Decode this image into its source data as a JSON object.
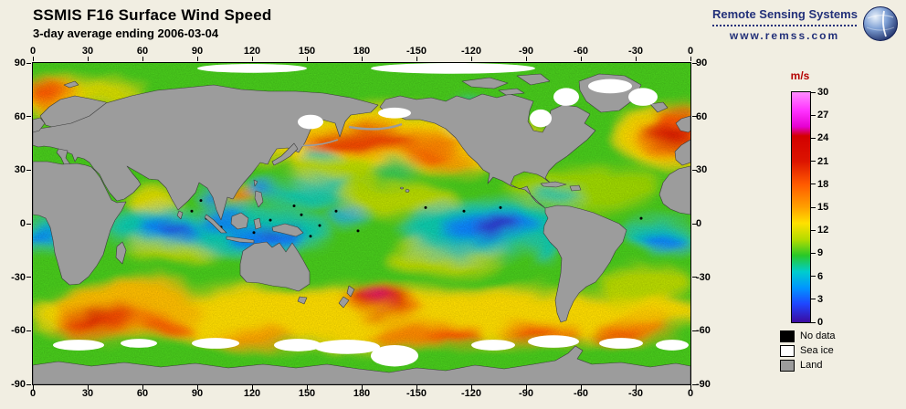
{
  "header": {
    "title": "SSMIS F16 Surface Wind Speed",
    "subtitle": "3-day average ending 2006-03-04"
  },
  "branding": {
    "name": "Remote Sensing Systems",
    "url": "www.remss.com"
  },
  "map": {
    "lon_ticks": [
      "0",
      "30",
      "60",
      "90",
      "120",
      "150",
      "180",
      "-150",
      "-120",
      "-90",
      "-60",
      "-30",
      "0"
    ],
    "lat_ticks": [
      "90",
      "60",
      "30",
      "0",
      "-30",
      "-60",
      "-90"
    ]
  },
  "colorbar": {
    "unit": "m/s",
    "unit_color": "#b40000",
    "min": 0,
    "max": 30,
    "ticks": [
      "30",
      "27",
      "24",
      "21",
      "18",
      "15",
      "12",
      "9",
      "6",
      "3",
      "0"
    ],
    "gradient": [
      {
        "p": 0,
        "c": "#ff8cff"
      },
      {
        "p": 8,
        "c": "#ff32ff"
      },
      {
        "p": 15,
        "c": "#e600d2"
      },
      {
        "p": 19,
        "c": "#d20000"
      },
      {
        "p": 30,
        "c": "#dc1400"
      },
      {
        "p": 40,
        "c": "#ff5a00"
      },
      {
        "p": 50,
        "c": "#ffa000"
      },
      {
        "p": 57,
        "c": "#ffe100"
      },
      {
        "p": 64,
        "c": "#b4dc00"
      },
      {
        "p": 71,
        "c": "#28c828"
      },
      {
        "p": 78,
        "c": "#00cdcd"
      },
      {
        "p": 85,
        "c": "#0096ff"
      },
      {
        "p": 92,
        "c": "#1e46ff"
      },
      {
        "p": 100,
        "c": "#3c0aa0"
      }
    ]
  },
  "legend": [
    {
      "label": "No data",
      "color": "#000000"
    },
    {
      "label": "Sea ice",
      "color": "#ffffff"
    },
    {
      "label": "Land",
      "color": "#9c9c9c"
    }
  ],
  "chart_data": {
    "type": "heatmap",
    "title": "SSMIS F16 Surface Wind Speed",
    "subtitle": "3-day average ending 2006-03-04",
    "variable": "ocean surface wind speed",
    "unit": "m/s",
    "scale_range": [
      0,
      30
    ],
    "scale_ticks": [
      30,
      27,
      24,
      21,
      18,
      15,
      12,
      9,
      6,
      3,
      0
    ],
    "projection": "equirectangular, Pacific-centered, longitude 0-360E left to right",
    "lon_axis": [
      0,
      30,
      60,
      90,
      120,
      150,
      180,
      -150,
      -120,
      -90,
      -60,
      -30,
      0
    ],
    "lat_axis": [
      90,
      60,
      30,
      0,
      -30,
      -60,
      -90
    ],
    "legend_classes": [
      "No data (black)",
      "Sea ice (white)",
      "Land (gray)"
    ],
    "features": [
      "High winds 15-25 m/s (red/magenta) in the North Atlantic storm track near Iceland and west of Europe",
      "High winds (red/orange band) across the North Pacific near 40-50N",
      "Strong storm south-east of New Zealand (red core ~20-25 m/s) in the Tasman/South Pacific sector",
      "Continuous Southern Ocean storm track 50-65S with red/orange maxima in the South Indian and South Pacific sectors",
      "Low winds 0-5 m/s (blue/purple) in equatorial doldrums: west Pacific warm pool, east Pacific, equatorial Indian Ocean and Atlantic",
      "Moderate 6-13 m/s (green/yellow) trade-wind and mid-latitude regions elsewhere",
      "Scattered black no-data pixels along tropical rain bands",
      "White sea ice fringing Antarctica, Hudson Bay, Sea of Okhotsk, Bering Sea and the Arctic margin"
    ]
  },
  "wind_field": {
    "base_ms": 9.2,
    "regions": [
      {
        "lon": 195,
        "lat": 46,
        "rlon": 85,
        "rlat": 16,
        "ms": 13
      },
      {
        "lon": 165,
        "lat": 28,
        "rlon": 25,
        "rlat": 8,
        "ms": 11
      },
      {
        "lon": 300,
        "lat": 20,
        "rlon": 40,
        "rlat": 12,
        "ms": 10.5
      },
      {
        "lon": 350,
        "lat": 48,
        "rlon": 28,
        "rlat": 18,
        "ms": 13
      },
      {
        "lon": 14,
        "lat": 71,
        "rlon": 20,
        "rlat": 10,
        "ms": 13
      },
      {
        "lon": 40,
        "lat": 73,
        "rlon": 18,
        "rlat": 5,
        "ms": 12
      },
      {
        "lon": 180,
        "lat": -52,
        "rlon": 185,
        "rlat": 16,
        "ms": 13
      },
      {
        "lon": 52,
        "lat": -47,
        "rlon": 42,
        "rlat": 14,
        "ms": 14
      },
      {
        "lon": 66,
        "lat": 13,
        "rlon": 13,
        "rlat": 8,
        "ms": 12
      },
      {
        "lon": 200,
        "lat": 14,
        "rlon": 32,
        "rlat": 8,
        "ms": 11
      },
      {
        "lon": 228,
        "lat": -17,
        "rlon": 30,
        "rlat": 9,
        "ms": 11
      },
      {
        "lon": 75,
        "lat": -15,
        "rlon": 24,
        "rlat": 7,
        "ms": 11
      },
      {
        "lon": 335,
        "lat": -35,
        "rlon": 25,
        "rlat": 10,
        "ms": 11
      },
      {
        "lon": 120,
        "lat": -4,
        "rlon": 42,
        "rlat": 13,
        "ms": 7
      },
      {
        "lon": 247,
        "lat": -3,
        "rlon": 45,
        "rlat": 14,
        "ms": 7
      },
      {
        "lon": 70,
        "lat": -3,
        "rlon": 28,
        "rlat": 10,
        "ms": 7
      },
      {
        "lon": 345,
        "lat": -5,
        "rlon": 18,
        "rlat": 9,
        "ms": 7
      },
      {
        "lon": 7,
        "lat": -6,
        "rlon": 12,
        "rlat": 8,
        "ms": 7
      },
      {
        "lon": 150,
        "lat": 17,
        "rlon": 22,
        "rlat": 6,
        "ms": 7
      },
      {
        "lon": 240,
        "lat": 60,
        "rlon": 14,
        "rlat": 7,
        "ms": 7
      },
      {
        "lon": 287,
        "lat": 16,
        "rlon": 12,
        "rlat": 4,
        "ms": 7
      },
      {
        "lon": 157,
        "lat": 38,
        "rlon": 9,
        "rlat": 3.5,
        "ms": 7
      },
      {
        "lon": 281,
        "lat": -14,
        "rlon": 6,
        "rlat": 9,
        "ms": 7
      },
      {
        "lon": 200,
        "lat": 30,
        "rlon": 12,
        "rlat": 4,
        "ms": 8
      },
      {
        "lon": 172,
        "lat": 5,
        "rlon": 10,
        "rlat": 3,
        "ms": 5.5
      },
      {
        "lon": 190,
        "lat": 46,
        "rlon": 45,
        "rlat": 8,
        "ms": 16
      },
      {
        "lon": 228,
        "lat": 37,
        "rlon": 18,
        "rlat": 5,
        "ms": 15
      },
      {
        "lon": 351,
        "lat": 47,
        "rlon": 20,
        "rlat": 12,
        "ms": 16
      },
      {
        "lon": 12,
        "lat": 72,
        "rlon": 13,
        "rlat": 8,
        "ms": 16
      },
      {
        "lon": 44,
        "lat": -55,
        "rlon": 33,
        "rlat": 8,
        "ms": 16
      },
      {
        "lon": 190,
        "lat": -44,
        "rlon": 20,
        "rlat": 9,
        "ms": 16
      },
      {
        "lon": 215,
        "lat": -62,
        "rlon": 28,
        "rlat": 7,
        "ms": 16
      },
      {
        "lon": 280,
        "lat": -62,
        "rlon": 23,
        "rlat": 6,
        "ms": 16
      },
      {
        "lon": 330,
        "lat": -60,
        "rlon": 20,
        "rlat": 6,
        "ms": 16
      },
      {
        "lon": 120,
        "lat": -64,
        "rlon": 22,
        "rlat": 5,
        "ms": 15
      },
      {
        "lon": 113,
        "lat": 16,
        "rlon": 7,
        "rlat": 4,
        "ms": 15
      },
      {
        "lon": 128,
        "lat": -8,
        "rlon": 22,
        "rlat": 6.5,
        "ms": 4
      },
      {
        "lon": 104,
        "lat": 2,
        "rlon": 14,
        "rlat": 4.5,
        "ms": 4
      },
      {
        "lon": 249,
        "lat": -3,
        "rlon": 26,
        "rlat": 7.5,
        "ms": 4
      },
      {
        "lon": 254,
        "lat": -3,
        "rlon": 12,
        "rlat": 4,
        "ms": 1
      },
      {
        "lon": 74,
        "lat": -4,
        "rlon": 16,
        "rlat": 5.5,
        "ms": 4
      },
      {
        "lon": 78,
        "lat": -4,
        "rlon": 7,
        "rlat": 2.5,
        "ms": 1.5
      },
      {
        "lon": 347,
        "lat": -8,
        "rlon": 12,
        "rlat": 5,
        "ms": 4
      },
      {
        "lon": 5,
        "lat": -7,
        "rlon": 8,
        "rlat": 4,
        "ms": 4
      },
      {
        "lon": 99,
        "lat": 15,
        "rlon": 6,
        "rlat": 3.5,
        "ms": 4
      },
      {
        "lon": 124,
        "lat": 21,
        "rlon": 6,
        "rlat": 3.5,
        "ms": 4
      },
      {
        "lon": 131,
        "lat": -5,
        "rlon": 5,
        "rlat": 2,
        "ms": 1
      },
      {
        "lon": 143,
        "lat": -3,
        "rlon": 4,
        "rlat": 2,
        "ms": 1
      },
      {
        "lon": 241,
        "lat": 59,
        "rlon": 7,
        "rlat": 3.5,
        "ms": 4
      },
      {
        "lon": 182,
        "lat": 47,
        "rlon": 26,
        "rlat": 5.5,
        "ms": 19
      },
      {
        "lon": 216,
        "lat": 38,
        "rlon": 11,
        "rlat": 3.5,
        "ms": 18
      },
      {
        "lon": 352,
        "lat": 50,
        "rlon": 15,
        "rlat": 8,
        "ms": 20
      },
      {
        "lon": 353,
        "lat": 60,
        "rlon": 12,
        "rlat": 6,
        "ms": 18
      },
      {
        "lon": 8,
        "lat": 74,
        "rlon": 10,
        "rlat": 6,
        "ms": 18
      },
      {
        "lon": 189,
        "lat": -42.5,
        "rlon": 13,
        "rlat": 7,
        "ms": 20
      },
      {
        "lon": 37,
        "lat": -53,
        "rlon": 20,
        "rlat": 6,
        "ms": 19
      },
      {
        "lon": 75,
        "lat": -60,
        "rlon": 14,
        "rlat": 4.5,
        "ms": 18
      },
      {
        "lon": 230,
        "lat": -64,
        "rlon": 15,
        "rlat": 4.5,
        "ms": 18
      },
      {
        "lon": 273,
        "lat": -62,
        "rlon": 11,
        "rlat": 4,
        "ms": 18
      },
      {
        "lon": 321,
        "lat": -61,
        "rlon": 13,
        "rlat": 4,
        "ms": 18
      },
      {
        "lon": 114,
        "lat": 15,
        "rlon": 5,
        "rlat": 3,
        "ms": 17
      },
      {
        "lon": 189,
        "lat": -42,
        "rlon": 5,
        "rlat": 2.5,
        "ms": 25
      },
      {
        "lon": 36,
        "lat": -52.5,
        "rlon": 5,
        "rlat": 2,
        "ms": 24
      },
      {
        "lon": 352,
        "lat": 49,
        "rlon": 5,
        "rlat": 2.5,
        "ms": 24
      }
    ],
    "no_data_points": [
      [
        95,
        3
      ],
      [
        103,
        -2
      ],
      [
        112,
        4
      ],
      [
        121,
        -5
      ],
      [
        130,
        2
      ],
      [
        138,
        -3
      ],
      [
        147,
        5
      ],
      [
        157,
        -1
      ],
      [
        166,
        7
      ],
      [
        178,
        -4
      ],
      [
        92,
        13
      ],
      [
        87,
        7
      ],
      [
        215,
        9
      ],
      [
        236,
        7
      ],
      [
        256,
        9
      ],
      [
        333,
        3
      ],
      [
        152,
        -7
      ],
      [
        143,
        10
      ]
    ],
    "sea_ice": [
      [
        152,
        57,
        7,
        4
      ],
      [
        198,
        62,
        9,
        3
      ],
      [
        278,
        59,
        6,
        5
      ],
      [
        292,
        71,
        7,
        5
      ],
      [
        334,
        71,
        8,
        5
      ],
      [
        316,
        77,
        12,
        4
      ],
      [
        230,
        87,
        45,
        3
      ],
      [
        120,
        87,
        30,
        2.5
      ],
      [
        25,
        -68,
        14,
        3
      ],
      [
        58,
        -67,
        10,
        2.5
      ],
      [
        100,
        -67,
        13,
        3
      ],
      [
        145,
        -68,
        13,
        3.5
      ],
      [
        172,
        -69,
        18,
        4
      ],
      [
        198,
        -74,
        13,
        6
      ],
      [
        252,
        -68,
        12,
        3
      ],
      [
        285,
        -66,
        14,
        3.5
      ],
      [
        322,
        -67,
        12,
        3
      ],
      [
        350,
        -68,
        9,
        3
      ]
    ]
  }
}
